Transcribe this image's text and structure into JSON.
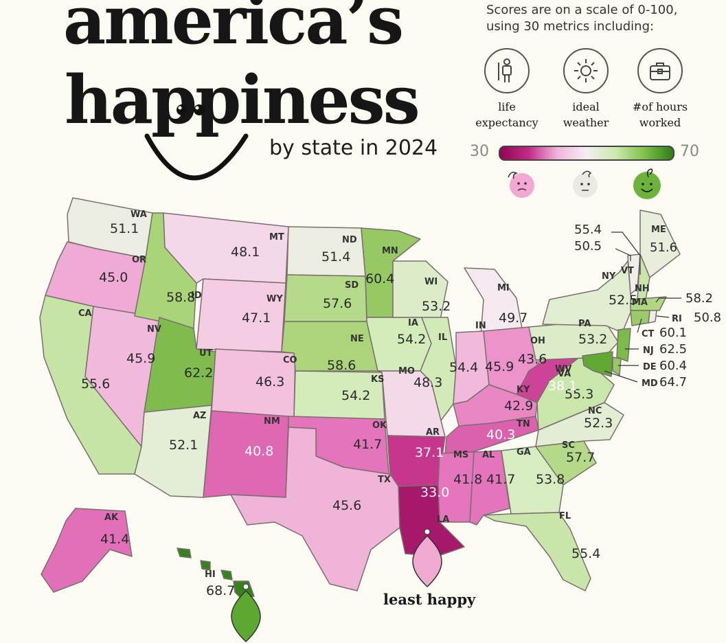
{
  "title": {
    "line1": "america’s",
    "line2": "happiness",
    "subtitle": "by state in 2024"
  },
  "legend": {
    "note": "Scores are on a scale of 0-100, using 30 metrics including:",
    "metrics": [
      {
        "label": "life\nexpectancy",
        "icon": "person-icon"
      },
      {
        "label": "ideal\nweather",
        "icon": "sun-icon"
      },
      {
        "label": "#of hours\nworked",
        "icon": "briefcase-icon"
      }
    ],
    "scale_min": "30",
    "scale_max": "70",
    "colors": {
      "low": "#8e0652",
      "mid": "#f4eef0",
      "high": "#2e7d17"
    }
  },
  "callout": {
    "least_happy": "least happy"
  },
  "states": [
    {
      "abbr": "WA",
      "score": "51.1"
    },
    {
      "abbr": "OR",
      "score": "45.0"
    },
    {
      "abbr": "CA",
      "score": "55.6"
    },
    {
      "abbr": "NV",
      "score": "45.9"
    },
    {
      "abbr": "ID",
      "score": "58.8"
    },
    {
      "abbr": "MT",
      "score": "48.1"
    },
    {
      "abbr": "WY",
      "score": "47.1"
    },
    {
      "abbr": "UT",
      "score": "62.2"
    },
    {
      "abbr": "AZ",
      "score": "52.1"
    },
    {
      "abbr": "CO",
      "score": "46.3"
    },
    {
      "abbr": "NM",
      "score": "40.8"
    },
    {
      "abbr": "ND",
      "score": "51.4"
    },
    {
      "abbr": "SD",
      "score": "57.6"
    },
    {
      "abbr": "NE",
      "score": "58.6"
    },
    {
      "abbr": "KS",
      "score": "54.2"
    },
    {
      "abbr": "OK",
      "score": "41.7"
    },
    {
      "abbr": "TX",
      "score": "45.6"
    },
    {
      "abbr": "MN",
      "score": "60.4"
    },
    {
      "abbr": "IA",
      "score": "54.2"
    },
    {
      "abbr": "MO",
      "score": "48.3"
    },
    {
      "abbr": "AR",
      "score": "37.1"
    },
    {
      "abbr": "LA",
      "score": "33.0"
    },
    {
      "abbr": "WI",
      "score": "53.2"
    },
    {
      "abbr": "IL",
      "score": "54.4"
    },
    {
      "abbr": "MI",
      "score": "49.7"
    },
    {
      "abbr": "IN",
      "score": "45.9"
    },
    {
      "abbr": "OH",
      "score": "43.6"
    },
    {
      "abbr": "KY",
      "score": "42.9"
    },
    {
      "abbr": "TN",
      "score": "40.3"
    },
    {
      "abbr": "MS",
      "score": "41.8"
    },
    {
      "abbr": "AL",
      "score": "41.7"
    },
    {
      "abbr": "GA",
      "score": "53.8"
    },
    {
      "abbr": "FL",
      "score": "55.4"
    },
    {
      "abbr": "SC",
      "score": "57.7"
    },
    {
      "abbr": "NC",
      "score": "52.3"
    },
    {
      "abbr": "VA",
      "score": "55.3"
    },
    {
      "abbr": "WV",
      "score": "38.1"
    },
    {
      "abbr": "PA",
      "score": "53.2"
    },
    {
      "abbr": "NY",
      "score": "52.5"
    },
    {
      "abbr": "ME",
      "score": "51.6"
    },
    {
      "abbr": "VT",
      "score": "50.5"
    },
    {
      "abbr": "NH",
      "score": "55.4"
    },
    {
      "abbr": "MA",
      "score": "58.2"
    },
    {
      "abbr": "RI",
      "score": "50.8"
    },
    {
      "abbr": "CT",
      "score": "60.1"
    },
    {
      "abbr": "NJ",
      "score": "62.5"
    },
    {
      "abbr": "DE",
      "score": "60.4"
    },
    {
      "abbr": "MD",
      "score": "64.7"
    },
    {
      "abbr": "AK",
      "score": "41.4"
    },
    {
      "abbr": "HI",
      "score": "68.7"
    }
  ]
}
